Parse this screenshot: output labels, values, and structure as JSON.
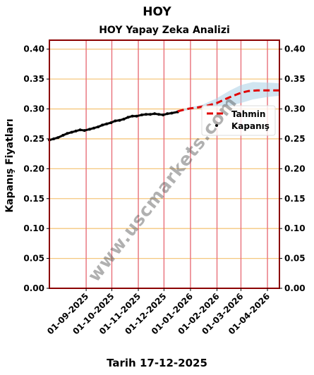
{
  "header": {
    "title": "HOY"
  },
  "footer": {
    "date_label": "Tarih 17-12-2025"
  },
  "watermark": {
    "text": "www.uscmarkets.com"
  },
  "colors": {
    "frame": "#8b0000",
    "hgrid": "#f5c77e",
    "vgrid": "#e8707a",
    "forecast": "#e00000",
    "band": "#a9cfe6",
    "actual": "#000000"
  },
  "chart_data": {
    "type": "line",
    "title": "HOY Yapay Zeka Analizi",
    "xlabel": "",
    "ylabel": "Kapanış Fiyatları",
    "ylim": [
      0,
      0.415
    ],
    "xlim": [
      "2025-07-20",
      "2026-04-15"
    ],
    "yticks": [
      "0.00",
      "0.05",
      "0.10",
      "0.15",
      "0.20",
      "0.25",
      "0.30",
      "0.35",
      "0.40"
    ],
    "xticks": [
      "01-09-2025",
      "01-10-2025",
      "01-11-2025",
      "01-12-2025",
      "01-01-2026",
      "01-02-2026",
      "01-03-2026",
      "01-04-2026"
    ],
    "grid": true,
    "legend_position": "right",
    "series": [
      {
        "name": "Kapanış",
        "style": "points",
        "x": [
          "2025-07-20",
          "2025-07-25",
          "2025-07-30",
          "2025-08-05",
          "2025-08-10",
          "2025-08-15",
          "2025-08-20",
          "2025-08-25",
          "2025-08-30",
          "2025-09-05",
          "2025-09-10",
          "2025-09-15",
          "2025-09-20",
          "2025-09-25",
          "2025-09-30",
          "2025-10-05",
          "2025-10-10",
          "2025-10-15",
          "2025-10-20",
          "2025-10-25",
          "2025-10-30",
          "2025-11-05",
          "2025-11-10",
          "2025-11-15",
          "2025-11-20",
          "2025-11-25",
          "2025-11-30",
          "2025-12-05",
          "2025-12-10",
          "2025-12-17"
        ],
        "values": [
          0.248,
          0.25,
          0.252,
          0.256,
          0.259,
          0.261,
          0.263,
          0.265,
          0.264,
          0.266,
          0.268,
          0.27,
          0.273,
          0.275,
          0.277,
          0.28,
          0.281,
          0.283,
          0.286,
          0.288,
          0.288,
          0.29,
          0.291,
          0.291,
          0.292,
          0.291,
          0.29,
          0.292,
          0.293,
          0.295
        ]
      },
      {
        "name": "Tahmin",
        "style": "dashed",
        "x": [
          "2025-12-17",
          "2025-12-25",
          "2026-01-01",
          "2026-01-08",
          "2026-01-15",
          "2026-01-22",
          "2026-02-01",
          "2026-02-10",
          "2026-02-20",
          "2026-03-01",
          "2026-03-10",
          "2026-03-20",
          "2026-04-01",
          "2026-04-15"
        ],
        "values": [
          0.296,
          0.299,
          0.301,
          0.302,
          0.304,
          0.306,
          0.31,
          0.316,
          0.322,
          0.327,
          0.33,
          0.331,
          0.331,
          0.331
        ]
      },
      {
        "name": "band",
        "style": "band",
        "x": [
          "2025-12-17",
          "2026-01-01",
          "2026-01-15",
          "2026-02-01",
          "2026-02-15",
          "2026-03-01",
          "2026-03-15",
          "2026-04-01",
          "2026-04-15"
        ],
        "upper": [
          0.298,
          0.303,
          0.307,
          0.318,
          0.33,
          0.34,
          0.345,
          0.344,
          0.343
        ],
        "lower": [
          0.294,
          0.299,
          0.301,
          0.302,
          0.305,
          0.31,
          0.316,
          0.32,
          0.322
        ]
      }
    ]
  }
}
